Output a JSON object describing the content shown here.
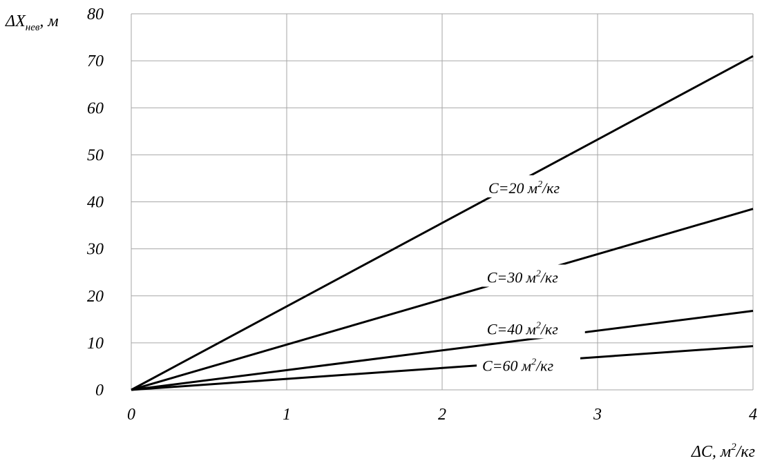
{
  "chart_data": {
    "type": "line",
    "xlabel": {
      "main": "ΔC, м",
      "sup": "2",
      "tail": "/кг"
    },
    "ylabel": {
      "main": "ΔX",
      "sub": "нев",
      "tail": ", м"
    },
    "xlim": [
      0,
      4
    ],
    "ylim": [
      0,
      80
    ],
    "xticks": [
      "0",
      "1",
      "2",
      "3",
      "4"
    ],
    "yticks": [
      "0",
      "10",
      "20",
      "30",
      "40",
      "50",
      "60",
      "70",
      "80"
    ],
    "grid": true,
    "legend": "none",
    "series": [
      {
        "name": "C=20 м2/кг",
        "label": {
          "main": "C=20 м",
          "sup": "2",
          "tail": "/кг"
        },
        "x": [
          0,
          4
        ],
        "y": [
          0,
          71
        ]
      },
      {
        "name": "C=30 м2/кг",
        "label": {
          "main": "C=30 м",
          "sup": "2",
          "tail": "/кг"
        },
        "x": [
          0,
          4
        ],
        "y": [
          0,
          38.5
        ]
      },
      {
        "name": "C=40 м2/кг",
        "label": {
          "main": "C=40 м",
          "sup": "2",
          "tail": "/кг"
        },
        "x": [
          0,
          4
        ],
        "y": [
          0,
          16.8
        ]
      },
      {
        "name": "C=60 м2/кг",
        "label": {
          "main": "C=60 м",
          "sup": "2",
          "tail": "/кг"
        },
        "x": [
          0,
          4
        ],
        "y": [
          0,
          9.3
        ]
      }
    ]
  }
}
